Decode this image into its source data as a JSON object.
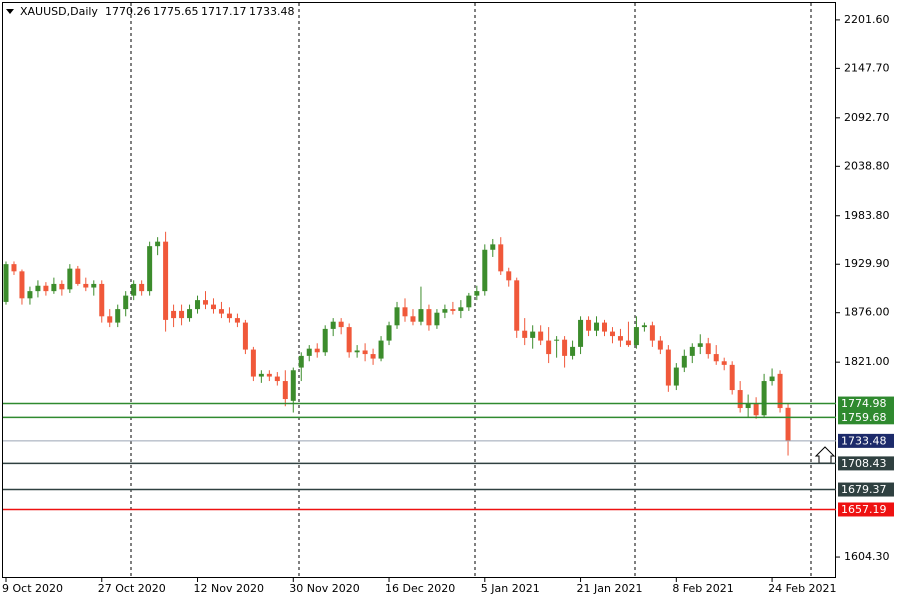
{
  "chart_data": {
    "type": "candlestick",
    "title": "XAUUSD,Daily",
    "categories": [
      "9 Oct 2020",
      null,
      null,
      null,
      null,
      null,
      null,
      null,
      null,
      null,
      null,
      null,
      "27 Oct 2020",
      null,
      null,
      null,
      null,
      null,
      null,
      null,
      null,
      null,
      null,
      null,
      "12 Nov 2020",
      null,
      null,
      null,
      null,
      null,
      null,
      null,
      null,
      null,
      null,
      null,
      "30 Nov 2020",
      null,
      null,
      null,
      null,
      null,
      null,
      null,
      null,
      null,
      null,
      null,
      "16 Dec 2020",
      null,
      null,
      null,
      null,
      null,
      null,
      null,
      null,
      null,
      null,
      null,
      "5 Jan 2021",
      null,
      null,
      null,
      null,
      null,
      null,
      null,
      null,
      null,
      null,
      null,
      "21 Jan 2021",
      null,
      null,
      null,
      null,
      null,
      null,
      null,
      null,
      null,
      null,
      null,
      "8 Feb 2021",
      null,
      null,
      null,
      null,
      null,
      null,
      null,
      null,
      null,
      null,
      null,
      "24 Feb 2021",
      null,
      null
    ],
    "open": [
      1888,
      1930,
      1922,
      1892,
      1900,
      1906,
      1900,
      1908,
      1902,
      1925,
      1908,
      1904,
      1908,
      1872,
      1865,
      1880,
      1895,
      1908,
      1900,
      1950,
      1955,
      1878,
      1878,
      1870,
      1880,
      1890,
      1885,
      1880,
      1875,
      1870,
      1865,
      1835,
      1805,
      1808,
      1805,
      1800,
      1778,
      1815,
      1828,
      1836,
      1832,
      1858,
      1866,
      1860,
      1832,
      1834,
      1830,
      1825,
      1845,
      1862,
      1882,
      1872,
      1866,
      1880,
      1862,
      1876,
      1880,
      1878,
      1882,
      1895,
      1900,
      1946,
      1952,
      1922,
      1912,
      1856,
      1848,
      1855,
      1845,
      1845,
      1846,
      1828,
      1838,
      1868,
      1856,
      1865,
      1855,
      1850,
      1845,
      1840,
      1860,
      1862,
      1845,
      1835,
      1795,
      1815,
      1828,
      1838,
      1842,
      1830,
      1822,
      1818,
      1790,
      1770,
      1775,
      1762,
      1800,
      1808,
      1770.26
    ],
    "high": [
      1933,
      1933,
      1924,
      1905,
      1912,
      1910,
      1915,
      1912,
      1930,
      1928,
      1915,
      1912,
      1912,
      1880,
      1885,
      1900,
      1912,
      1912,
      1955,
      1960,
      1966,
      1885,
      1885,
      1885,
      1895,
      1900,
      1892,
      1888,
      1882,
      1875,
      1868,
      1838,
      1812,
      1812,
      1810,
      1812,
      1815,
      1832,
      1840,
      1842,
      1862,
      1870,
      1870,
      1864,
      1840,
      1842,
      1836,
      1850,
      1866,
      1888,
      1892,
      1880,
      1905,
      1885,
      1880,
      1885,
      1888,
      1890,
      1898,
      1906,
      1952,
      1958,
      1960,
      1926,
      1915,
      1870,
      1862,
      1862,
      1860,
      1850,
      1850,
      1845,
      1872,
      1872,
      1872,
      1868,
      1860,
      1858,
      1866,
      1872,
      1865,
      1866,
      1850,
      1840,
      1820,
      1835,
      1842,
      1852,
      1848,
      1840,
      1826,
      1822,
      1800,
      1785,
      1782,
      1808,
      1814,
      1812,
      1775.65
    ],
    "low": [
      1885,
      1918,
      1885,
      1885,
      1893,
      1895,
      1897,
      1895,
      1898,
      1906,
      1900,
      1895,
      1865,
      1860,
      1860,
      1872,
      1890,
      1895,
      1895,
      1940,
      1855,
      1860,
      1862,
      1866,
      1875,
      1880,
      1875,
      1870,
      1865,
      1860,
      1830,
      1800,
      1798,
      1800,
      1795,
      1772,
      1765,
      1800,
      1822,
      1826,
      1828,
      1850,
      1852,
      1826,
      1826,
      1822,
      1818,
      1822,
      1840,
      1858,
      1866,
      1862,
      1862,
      1856,
      1858,
      1870,
      1874,
      1870,
      1878,
      1890,
      1895,
      1938,
      1918,
      1905,
      1848,
      1840,
      1836,
      1840,
      1820,
      1826,
      1815,
      1824,
      1830,
      1850,
      1850,
      1850,
      1842,
      1838,
      1838,
      1836,
      1855,
      1838,
      1830,
      1788,
      1790,
      1810,
      1820,
      1830,
      1825,
      1818,
      1812,
      1785,
      1765,
      1760,
      1758,
      1760,
      1795,
      1765,
      1717.17
    ],
    "close": [
      1930,
      1922,
      1892,
      1900,
      1906,
      1900,
      1908,
      1902,
      1925,
      1908,
      1904,
      1908,
      1872,
      1865,
      1880,
      1895,
      1908,
      1900,
      1950,
      1955,
      1868,
      1870,
      1870,
      1880,
      1890,
      1885,
      1880,
      1875,
      1870,
      1865,
      1835,
      1805,
      1808,
      1805,
      1800,
      1780,
      1812,
      1828,
      1836,
      1832,
      1858,
      1866,
      1860,
      1832,
      1834,
      1830,
      1825,
      1845,
      1862,
      1882,
      1872,
      1866,
      1880,
      1862,
      1876,
      1880,
      1878,
      1882,
      1895,
      1900,
      1946,
      1952,
      1922,
      1912,
      1856,
      1848,
      1855,
      1845,
      1830,
      1846,
      1828,
      1838,
      1868,
      1856,
      1865,
      1855,
      1850,
      1845,
      1840,
      1860,
      1862,
      1845,
      1835,
      1795,
      1815,
      1828,
      1838,
      1842,
      1830,
      1822,
      1818,
      1790,
      1770,
      1775,
      1762,
      1800,
      1805,
      1770,
      1733.48
    ],
    "up_color": "#3c8c2c",
    "down_color": "#f0583a",
    "current_price_color": "#1c2a6a",
    "ylim": [
      1581,
      2221.5
    ],
    "yticks": [
      {
        "value": 2201.6,
        "label": "2201.60"
      },
      {
        "value": 2147.7,
        "label": "2147.70"
      },
      {
        "value": 2092.7,
        "label": "2092.70"
      },
      {
        "value": 2038.8,
        "label": "2038.80"
      },
      {
        "value": 1983.8,
        "label": "1983.80"
      },
      {
        "value": 1929.9,
        "label": "1929.90"
      },
      {
        "value": 1876,
        "label": "1876.00"
      },
      {
        "value": 1821,
        "label": "1821.00"
      },
      {
        "value": 1604.3,
        "label": "1604.30"
      }
    ],
    "levels": [
      {
        "value": 1774.98,
        "color": "#2f8a2f"
      },
      {
        "value": 1759.68,
        "color": "#2f8a2f"
      },
      {
        "value": 1708.43,
        "color": "#2f4040"
      },
      {
        "value": 1679.37,
        "color": "#2f4040"
      },
      {
        "value": 1657.19,
        "color": "#ee1111"
      }
    ]
  }
}
